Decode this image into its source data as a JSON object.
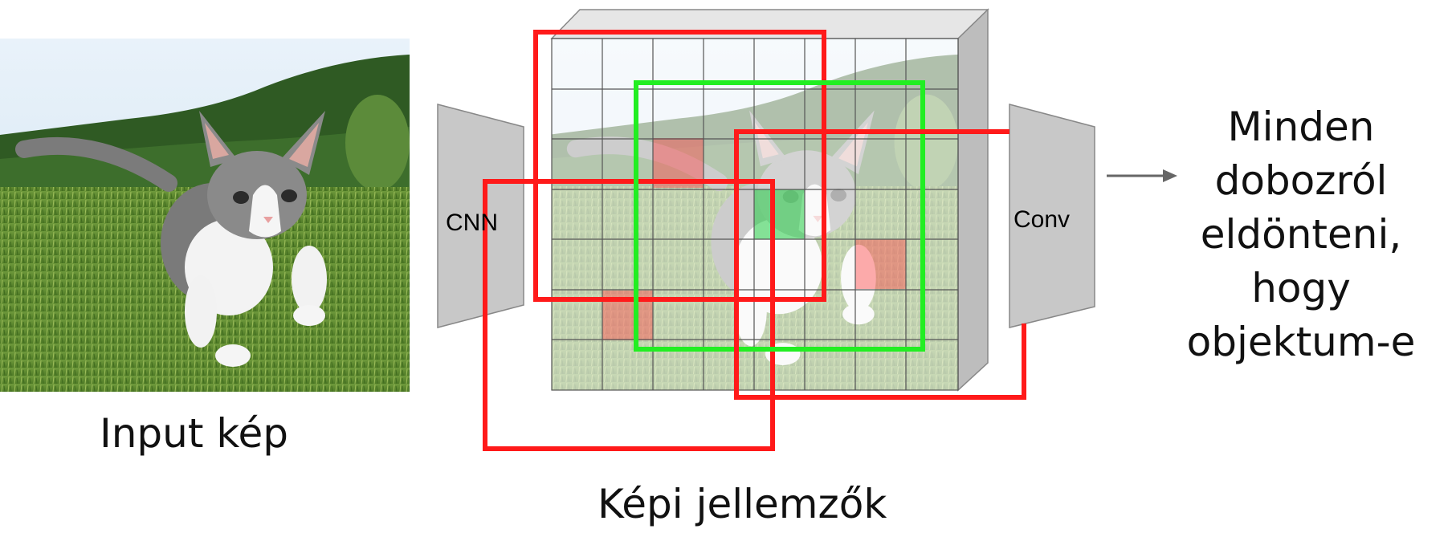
{
  "input_caption": "Input kép",
  "features_caption": "Képi jellemzők",
  "cnn_label": "CNN",
  "conv_label": "Conv",
  "result_lines": [
    "Minden",
    "dobozról",
    "eldönteni,",
    "hogy",
    "objektum-e"
  ],
  "colors": {
    "red_box": "#ff1a1a",
    "green_box": "#22ee22",
    "grey_block": "#c8c8c8",
    "grid_line": "#555555",
    "arrow": "#666666"
  },
  "icons": {
    "input_image": "kitten-on-grass-photo",
    "arrow": "right-arrow-icon"
  }
}
